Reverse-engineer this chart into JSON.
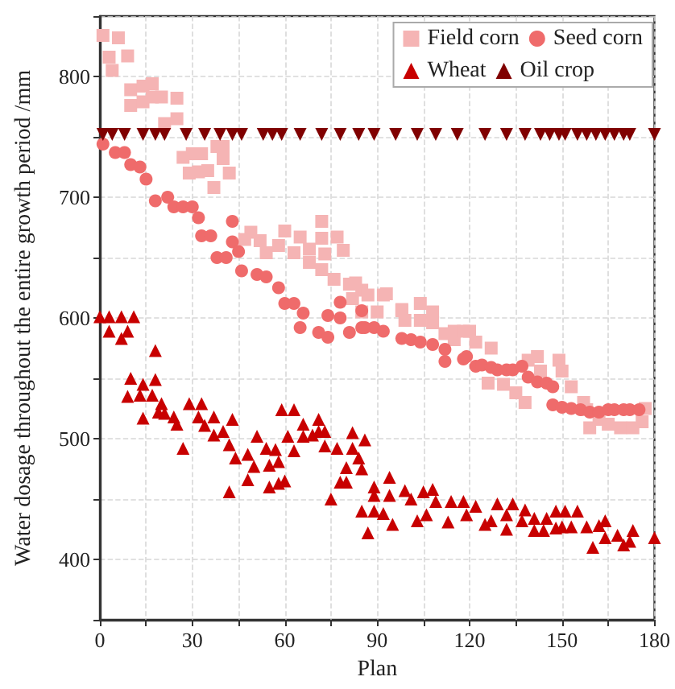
{
  "chart_data": {
    "type": "scatter",
    "xlabel": "Plan",
    "ylabel": "Water dosage throughout the entire growth period /mm",
    "xlim": [
      0,
      180
    ],
    "ylim": [
      350,
      850
    ],
    "xticks": [
      0,
      {
        "value": 15,
        "label": null
      },
      30,
      {
        "value": 45,
        "label": null
      },
      60,
      {
        "value": 75,
        "label": null
      },
      90,
      {
        "value": 105,
        "label": null
      },
      120,
      {
        "value": 135,
        "label": null
      },
      150,
      {
        "value": 165,
        "label": null
      },
      180
    ],
    "yticks": [
      {
        "value": 350,
        "label": null
      },
      400,
      {
        "value": 450,
        "label": null
      },
      500,
      {
        "value": 550,
        "label": null
      },
      600,
      {
        "value": 650,
        "label": null
      },
      700,
      {
        "value": 750,
        "label": null
      },
      800,
      {
        "value": 850,
        "label": null
      }
    ],
    "grid": true,
    "legend": "top right",
    "series": [
      {
        "name": "Field corn",
        "color": "#f5b4b4",
        "marker": "square",
        "x": [
          1,
          6,
          3,
          4,
          9,
          10,
          10,
          14,
          14,
          17,
          17,
          20,
          21,
          25,
          25,
          27,
          29,
          30,
          33,
          32,
          35,
          37,
          38,
          40,
          40,
          42,
          49,
          47,
          52,
          54,
          58,
          60,
          63,
          65,
          68,
          68,
          72,
          72,
          73,
          72,
          76,
          77,
          79,
          81,
          82,
          85,
          83,
          87,
          90,
          92,
          93,
          98,
          104,
          85,
          98,
          99,
          104,
          108,
          108,
          112,
          115,
          115,
          118,
          120,
          122,
          127,
          126,
          131,
          135,
          138,
          139,
          142,
          143,
          149,
          150,
          153,
          157,
          158,
          159,
          162,
          165,
          169,
          173,
          176,
          177
        ],
        "values": [
          834,
          832,
          816,
          805,
          817,
          789,
          776,
          792,
          779,
          794,
          783,
          783,
          761,
          765,
          782,
          733,
          720,
          736,
          736,
          721,
          722,
          708,
          742,
          742,
          732,
          720,
          671,
          665,
          664,
          654,
          660,
          672,
          654,
          667,
          657,
          646,
          680,
          666,
          653,
          640,
          632,
          667,
          656,
          628,
          616,
          623,
          629,
          619,
          605,
          619,
          620,
          606,
          612,
          605,
          607,
          598,
          598,
          605,
          596,
          587,
          589,
          582,
          589,
          589,
          580,
          575,
          546,
          545,
          538,
          530,
          565,
          568,
          556,
          565,
          556,
          543,
          530,
          524,
          509,
          516,
          512,
          509,
          509,
          514,
          525
        ]
      },
      {
        "name": "Seed corn",
        "color": "#ef6b6b",
        "marker": "circle",
        "x": [
          1,
          5,
          8,
          10,
          13,
          15,
          18,
          22,
          24,
          27,
          30,
          32,
          33,
          36,
          38,
          41,
          43,
          43,
          45,
          46,
          51,
          54,
          58,
          60,
          63,
          66,
          74,
          78,
          78,
          85,
          65,
          71,
          74,
          81,
          85,
          89,
          86,
          92,
          98,
          101,
          104,
          108,
          112,
          112,
          118,
          119,
          122,
          124,
          127,
          129,
          132,
          134,
          137,
          139,
          142,
          145,
          147,
          147,
          150,
          153,
          156,
          159,
          162,
          165,
          167,
          170,
          172,
          175
        ],
        "values": [
          744,
          737,
          737,
          727,
          725,
          715,
          697,
          700,
          692,
          692,
          692,
          683,
          668,
          668,
          650,
          650,
          680,
          663,
          655,
          639,
          636,
          634,
          625,
          612,
          612,
          604,
          602,
          600,
          613,
          606,
          592,
          588,
          584,
          588,
          592,
          592,
          592,
          589,
          583,
          582,
          580,
          578,
          574,
          564,
          566,
          568,
          560,
          561,
          559,
          557,
          557,
          557,
          560,
          551,
          547,
          546,
          543,
          528,
          526,
          525,
          524,
          522,
          522,
          524,
          524,
          524,
          524,
          524
        ]
      },
      {
        "name": "Wheat",
        "color": "#c80000",
        "marker": "triangle",
        "x": [
          0,
          3,
          7,
          11,
          3,
          7,
          9,
          18,
          10,
          9,
          13,
          14,
          18,
          17,
          14,
          20,
          19,
          21,
          24,
          25,
          27,
          29,
          33,
          32,
          34,
          37,
          37,
          40,
          43,
          42,
          44,
          42,
          48,
          50,
          48,
          51,
          54,
          55,
          57,
          58,
          55,
          58,
          60,
          59,
          63,
          61,
          63,
          66,
          66,
          69,
          71,
          71,
          73,
          73,
          75,
          77,
          78,
          80,
          80,
          82,
          82,
          84,
          85,
          86,
          85,
          87,
          89,
          89,
          89,
          92,
          94,
          94,
          95,
          99,
          101,
          103,
          105,
          106,
          108,
          109,
          113,
          114,
          118,
          119,
          122,
          125,
          127,
          129,
          132,
          132,
          134,
          137,
          138,
          141,
          141,
          144,
          145,
          148,
          148,
          150,
          151,
          153,
          155,
          158,
          160,
          162,
          164,
          164,
          168,
          170,
          172,
          173,
          180
        ],
        "values": [
          601,
          601,
          601,
          601,
          589,
          583,
          589,
          573,
          550,
          535,
          536,
          545,
          549,
          536,
          517,
          529,
          522,
          521,
          518,
          512,
          492,
          529,
          529,
          518,
          511,
          518,
          503,
          506,
          516,
          495,
          484,
          456,
          487,
          477,
          466,
          502,
          492,
          478,
          491,
          481,
          460,
          463,
          465,
          524,
          524,
          502,
          490,
          512,
          502,
          503,
          516,
          506,
          506,
          494,
          450,
          492,
          464,
          464,
          476,
          505,
          492,
          484,
          475,
          499,
          440,
          422,
          460,
          453,
          440,
          438,
          468,
          453,
          429,
          457,
          450,
          432,
          456,
          437,
          458,
          448,
          431,
          448,
          448,
          437,
          444,
          429,
          432,
          446,
          425,
          437,
          446,
          432,
          441,
          434,
          424,
          424,
          434,
          440,
          426,
          427,
          440,
          427,
          440,
          427,
          410,
          428,
          432,
          418,
          420,
          412,
          415,
          424,
          418
        ]
      },
      {
        "name": "Oil crop",
        "color": "#800000",
        "marker": "triangle-down",
        "x": [
          1,
          4,
          8,
          14,
          18,
          21,
          28,
          34,
          39,
          43,
          46,
          53,
          56,
          59,
          65,
          72,
          78,
          84,
          89,
          96,
          103,
          109,
          116,
          125,
          132,
          138,
          143,
          146,
          149,
          151,
          155,
          158,
          161,
          164,
          167,
          170,
          172,
          180
        ],
        "values": [
          752,
          752,
          752,
          752,
          752,
          752,
          752,
          752,
          752,
          752,
          752,
          752,
          752,
          752,
          752,
          752,
          752,
          752,
          752,
          752,
          752,
          752,
          752,
          752,
          752,
          752,
          752,
          752,
          752,
          752,
          752,
          752,
          752,
          752,
          752,
          752,
          752,
          752
        ]
      }
    ]
  }
}
